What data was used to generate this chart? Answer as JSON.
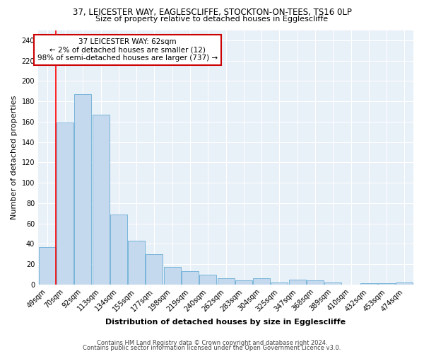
{
  "title1": "37, LEICESTER WAY, EAGLESCLIFFE, STOCKTON-ON-TEES, TS16 0LP",
  "title2": "Size of property relative to detached houses in Egglescliffe",
  "xlabel": "Distribution of detached houses by size in Egglescliffe",
  "ylabel": "Number of detached properties",
  "categories": [
    "49sqm",
    "70sqm",
    "92sqm",
    "113sqm",
    "134sqm",
    "155sqm",
    "177sqm",
    "198sqm",
    "219sqm",
    "240sqm",
    "262sqm",
    "283sqm",
    "304sqm",
    "325sqm",
    "347sqm",
    "368sqm",
    "389sqm",
    "410sqm",
    "432sqm",
    "453sqm",
    "474sqm"
  ],
  "values": [
    37,
    159,
    187,
    167,
    69,
    43,
    30,
    17,
    13,
    10,
    6,
    4,
    6,
    2,
    5,
    4,
    2,
    0,
    1,
    1,
    2
  ],
  "bar_color": "#c5d9ee",
  "bar_edge_color": "#6aaed6",
  "annotation_text": "37 LEICESTER WAY: 62sqm\n← 2% of detached houses are smaller (12)\n98% of semi-detached houses are larger (737) →",
  "annotation_box_color": "#ffffff",
  "annotation_box_edge": "#cc0000",
  "footer1": "Contains HM Land Registry data © Crown copyright and database right 2024.",
  "footer2": "Contains public sector information licensed under the Open Government Licence v3.0.",
  "ylim": [
    0,
    250
  ],
  "yticks": [
    0,
    20,
    40,
    60,
    80,
    100,
    120,
    140,
    160,
    180,
    200,
    220,
    240
  ],
  "bg_color": "#e8f0f8",
  "grid_color": "#ffffff",
  "title1_fontsize": 8.5,
  "title2_fontsize": 8.0,
  "label_fontsize": 8.0,
  "tick_fontsize": 7.0,
  "footer_fontsize": 6.0,
  "annot_fontsize": 7.5
}
